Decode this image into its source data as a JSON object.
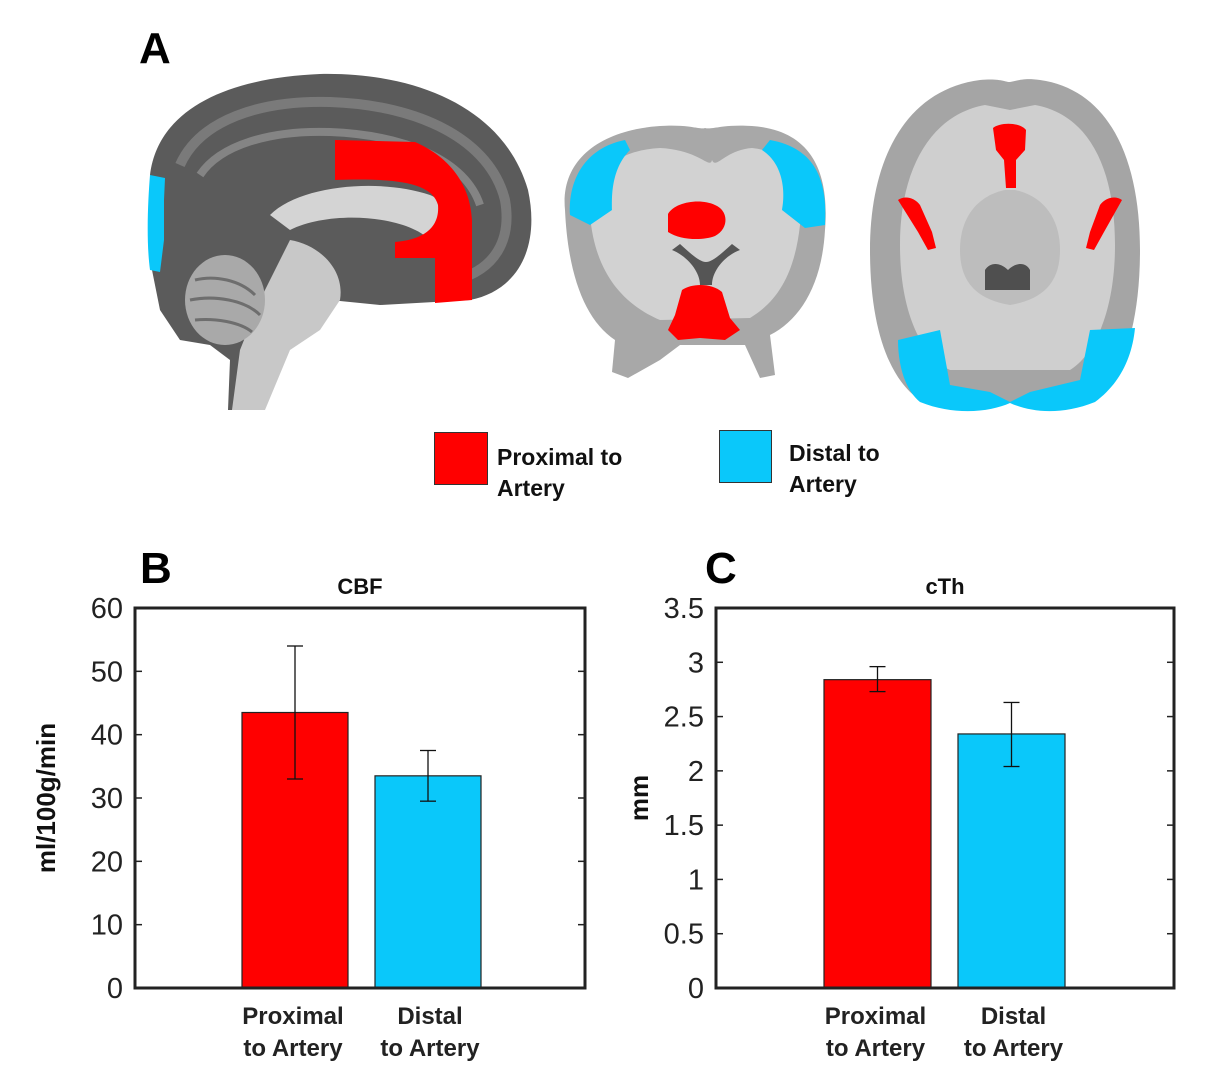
{
  "panels": {
    "a": "A",
    "b": "B",
    "c": "C"
  },
  "legend": [
    {
      "line1": "Proximal to",
      "line2": "Artery",
      "color": "#ff0000"
    },
    {
      "line1": "Distal to",
      "line2": "Artery",
      "color": "#0ac8fa"
    }
  ],
  "colors": {
    "proximal": "#ff0000",
    "distal": "#0ac8fa"
  },
  "chart_data": [
    {
      "type": "bar",
      "title": "CBF",
      "ylabel": "ml/100g/min",
      "xlabel": "",
      "ylim": [
        0,
        60
      ],
      "yticks": [
        "0",
        "10",
        "20",
        "30",
        "40",
        "50",
        "60"
      ],
      "categories": [
        [
          "Proximal",
          "to Artery"
        ],
        [
          "Distal",
          "to Artery"
        ]
      ],
      "values": [
        43.5,
        33.5
      ],
      "errors": [
        [
          33,
          54
        ],
        [
          29.5,
          37.5
        ]
      ],
      "colors": [
        "#ff0000",
        "#0ac8fa"
      ]
    },
    {
      "type": "bar",
      "title": "cTh",
      "ylabel": "mm",
      "xlabel": "",
      "ylim": [
        0,
        3.5
      ],
      "yticks": [
        "0",
        "0.5",
        "1",
        "1.5",
        "2",
        "2.5",
        "3",
        "3.5"
      ],
      "categories": [
        [
          "Proximal",
          "to Artery"
        ],
        [
          "Distal",
          "to Artery"
        ]
      ],
      "values": [
        2.84,
        2.34
      ],
      "errors": [
        [
          2.73,
          2.96
        ],
        [
          2.04,
          2.63
        ]
      ],
      "colors": [
        "#ff0000",
        "#0ac8fa"
      ]
    }
  ]
}
